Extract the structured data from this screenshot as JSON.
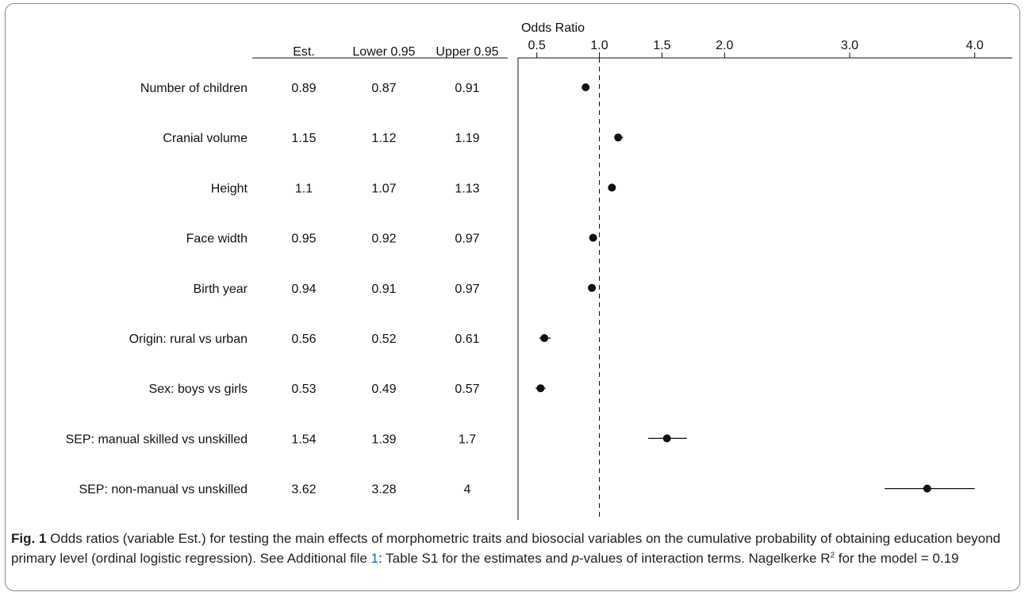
{
  "chart_data": {
    "type": "scatter",
    "title": "Odds Ratio",
    "xlim": [
      0.35,
      4.3
    ],
    "x_ticks": [
      0.5,
      1.0,
      1.5,
      2.0,
      3.0,
      4.0
    ],
    "x_tick_labels": [
      "0.5",
      "1.0",
      "1.5",
      "2.0",
      "3.0",
      "4.0"
    ],
    "reference_line": 1.0,
    "table_headers": [
      "Est.",
      "Lower 0.95",
      "Upper 0.95"
    ],
    "rows": [
      {
        "label": "Number of children",
        "est": 0.89,
        "lower": 0.87,
        "upper": 0.91,
        "est_text": "0.89",
        "lower_text": "0.87",
        "upper_text": "0.91"
      },
      {
        "label": "Cranial volume",
        "est": 1.15,
        "lower": 1.12,
        "upper": 1.19,
        "est_text": "1.15",
        "lower_text": "1.12",
        "upper_text": "1.19"
      },
      {
        "label": "Height",
        "est": 1.1,
        "lower": 1.07,
        "upper": 1.13,
        "est_text": "1.1",
        "lower_text": "1.07",
        "upper_text": "1.13"
      },
      {
        "label": "Face width",
        "est": 0.95,
        "lower": 0.92,
        "upper": 0.97,
        "est_text": "0.95",
        "lower_text": "0.92",
        "upper_text": "0.97"
      },
      {
        "label": "Birth year",
        "est": 0.94,
        "lower": 0.91,
        "upper": 0.97,
        "est_text": "0.94",
        "lower_text": "0.91",
        "upper_text": "0.97"
      },
      {
        "label": "Origin: rural vs urban",
        "est": 0.56,
        "lower": 0.52,
        "upper": 0.61,
        "est_text": "0.56",
        "lower_text": "0.52",
        "upper_text": "0.61"
      },
      {
        "label": "Sex: boys vs girls",
        "est": 0.53,
        "lower": 0.49,
        "upper": 0.57,
        "est_text": "0.53",
        "lower_text": "0.49",
        "upper_text": "0.57"
      },
      {
        "label": "SEP: manual skilled vs unskilled",
        "est": 1.54,
        "lower": 1.39,
        "upper": 1.7,
        "est_text": "1.54",
        "lower_text": "1.39",
        "upper_text": "1.7"
      },
      {
        "label": "SEP: non-manual vs unskilled",
        "est": 3.62,
        "lower": 3.28,
        "upper": 4,
        "est_text": "3.62",
        "lower_text": "3.28",
        "upper_text": "4"
      }
    ]
  },
  "caption": {
    "fig_label": "Fig. 1",
    "text_1": " Odds ratios (variable Est.) for testing the main effects of morphometric traits and biosocial variables on the cumulative probability of obtaining education beyond primary level (ordinal logistic regression). See Additional file ",
    "link_text": "1",
    "text_2": ": Table S1 for the estimates and ",
    "italic_text": "p",
    "text_3": "-values of interaction terms. Nagelkerke R",
    "superscript": "2",
    "text_4": " for the model = 0.19"
  }
}
